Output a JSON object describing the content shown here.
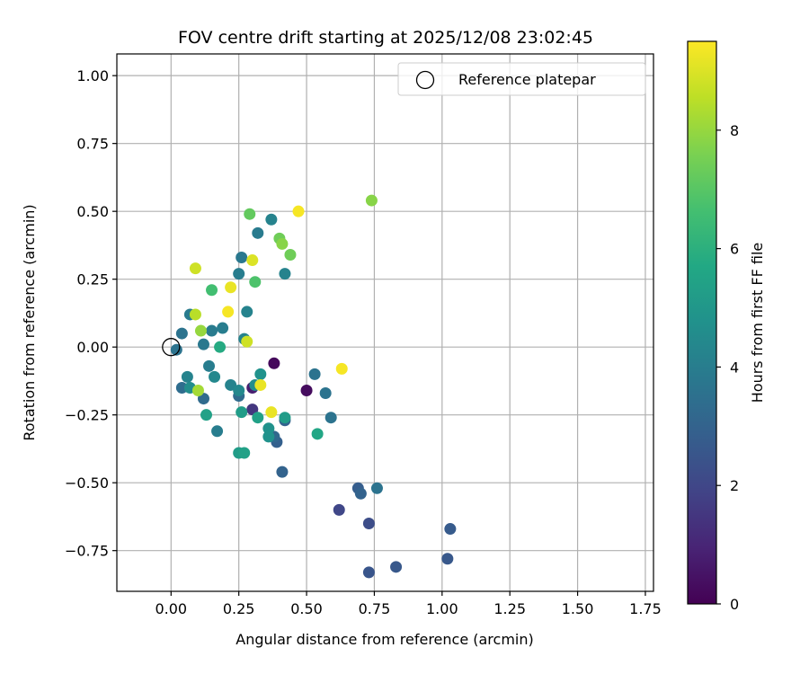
{
  "chart_data": {
    "type": "scatter",
    "title": "FOV centre drift starting at 2025/12/08 23:02:45",
    "xlabel": "Angular distance from reference (arcmin)",
    "ylabel": "Rotation from reference (arcmin)",
    "xlim": [
      -0.2,
      1.78
    ],
    "ylim": [
      -0.9,
      1.08
    ],
    "xticks": [
      0.0,
      0.25,
      0.5,
      0.75,
      1.0,
      1.25,
      1.5,
      1.75
    ],
    "xtick_labels": [
      "0.00",
      "0.25",
      "0.50",
      "0.75",
      "1.00",
      "1.25",
      "1.50",
      "1.75"
    ],
    "yticks": [
      -0.75,
      -0.5,
      -0.25,
      0.0,
      0.25,
      0.5,
      0.75,
      1.0
    ],
    "ytick_labels": [
      "−0.75",
      "−0.50",
      "−0.25",
      "0.00",
      "0.25",
      "0.50",
      "0.75",
      "1.00"
    ],
    "grid": true,
    "legend": {
      "placement": "top-right",
      "entries": [
        "Reference platepar"
      ]
    },
    "reference_point": {
      "x": 0.0,
      "y": 0.0
    },
    "colorbar": {
      "label": "Hours from first FF file",
      "range": [
        0,
        9.5
      ],
      "ticks": [
        0,
        2,
        4,
        6,
        8
      ],
      "tick_labels": [
        "0",
        "2",
        "4",
        "6",
        "8"
      ],
      "colormap": "viridis"
    },
    "points": [
      {
        "x": 0.38,
        "y": -0.06,
        "c": 0.2
      },
      {
        "x": 0.5,
        "y": -0.16,
        "c": 0.3
      },
      {
        "x": 0.3,
        "y": -0.15,
        "c": 0.8
      },
      {
        "x": 0.3,
        "y": -0.23,
        "c": 1.5
      },
      {
        "x": 0.62,
        "y": -0.6,
        "c": 2.0
      },
      {
        "x": 0.73,
        "y": -0.65,
        "c": 2.2
      },
      {
        "x": 0.73,
        "y": -0.83,
        "c": 2.5
      },
      {
        "x": 0.83,
        "y": -0.81,
        "c": 2.6
      },
      {
        "x": 1.02,
        "y": -0.78,
        "c": 2.6
      },
      {
        "x": 1.03,
        "y": -0.67,
        "c": 2.7
      },
      {
        "x": 0.69,
        "y": -0.52,
        "c": 2.8
      },
      {
        "x": 0.7,
        "y": -0.54,
        "c": 3.0
      },
      {
        "x": 0.39,
        "y": -0.35,
        "c": 2.9
      },
      {
        "x": 0.41,
        "y": -0.46,
        "c": 3.0
      },
      {
        "x": 0.42,
        "y": -0.27,
        "c": 3.0
      },
      {
        "x": 0.38,
        "y": -0.33,
        "c": 3.2
      },
      {
        "x": 0.25,
        "y": -0.18,
        "c": 3.3
      },
      {
        "x": 0.12,
        "y": -0.19,
        "c": 3.3
      },
      {
        "x": 0.59,
        "y": -0.26,
        "c": 3.6
      },
      {
        "x": 0.57,
        "y": -0.17,
        "c": 3.6
      },
      {
        "x": 0.53,
        "y": -0.1,
        "c": 3.6
      },
      {
        "x": 0.76,
        "y": -0.52,
        "c": 3.6
      },
      {
        "x": 0.04,
        "y": -0.15,
        "c": 3.4
      },
      {
        "x": 0.02,
        "y": -0.01,
        "c": 3.6
      },
      {
        "x": 0.04,
        "y": 0.05,
        "c": 3.6
      },
      {
        "x": 0.07,
        "y": 0.12,
        "c": 3.9
      },
      {
        "x": 0.12,
        "y": 0.01,
        "c": 3.8
      },
      {
        "x": 0.15,
        "y": 0.06,
        "c": 3.9
      },
      {
        "x": 0.19,
        "y": 0.07,
        "c": 4.0
      },
      {
        "x": 0.14,
        "y": -0.07,
        "c": 4.0
      },
      {
        "x": 0.17,
        "y": -0.31,
        "c": 4.0
      },
      {
        "x": 0.06,
        "y": -0.11,
        "c": 4.2
      },
      {
        "x": 0.25,
        "y": 0.27,
        "c": 4.0
      },
      {
        "x": 0.26,
        "y": 0.33,
        "c": 3.8
      },
      {
        "x": 0.32,
        "y": 0.42,
        "c": 3.9
      },
      {
        "x": 0.37,
        "y": 0.47,
        "c": 4.2
      },
      {
        "x": 0.42,
        "y": 0.27,
        "c": 4.2
      },
      {
        "x": 0.28,
        "y": 0.13,
        "c": 4.2
      },
      {
        "x": 0.27,
        "y": 0.03,
        "c": 4.2
      },
      {
        "x": 0.22,
        "y": -0.14,
        "c": 4.2
      },
      {
        "x": 0.25,
        "y": -0.16,
        "c": 4.4
      },
      {
        "x": 0.16,
        "y": -0.11,
        "c": 4.4
      },
      {
        "x": 0.07,
        "y": -0.15,
        "c": 4.6
      },
      {
        "x": 0.31,
        "y": -0.14,
        "c": 4.6
      },
      {
        "x": 0.33,
        "y": -0.1,
        "c": 4.8
      },
      {
        "x": 0.36,
        "y": -0.3,
        "c": 4.8
      },
      {
        "x": 0.36,
        "y": -0.33,
        "c": 4.8
      },
      {
        "x": 0.26,
        "y": -0.24,
        "c": 5.2
      },
      {
        "x": 0.13,
        "y": -0.25,
        "c": 5.4
      },
      {
        "x": 0.32,
        "y": -0.26,
        "c": 5.4
      },
      {
        "x": 0.42,
        "y": -0.26,
        "c": 5.2
      },
      {
        "x": 0.25,
        "y": -0.39,
        "c": 5.2
      },
      {
        "x": 0.27,
        "y": -0.39,
        "c": 5.4
      },
      {
        "x": 0.54,
        "y": -0.32,
        "c": 5.6
      },
      {
        "x": 0.18,
        "y": 0.0,
        "c": 5.8
      },
      {
        "x": 0.15,
        "y": 0.21,
        "c": 6.6
      },
      {
        "x": 0.31,
        "y": 0.24,
        "c": 6.8
      },
      {
        "x": 0.29,
        "y": 0.49,
        "c": 7.2
      },
      {
        "x": 0.4,
        "y": 0.4,
        "c": 7.4
      },
      {
        "x": 0.41,
        "y": 0.38,
        "c": 7.8
      },
      {
        "x": 0.44,
        "y": 0.34,
        "c": 7.4
      },
      {
        "x": 0.74,
        "y": 0.54,
        "c": 7.8
      },
      {
        "x": 0.11,
        "y": 0.06,
        "c": 8.0
      },
      {
        "x": 0.1,
        "y": -0.16,
        "c": 8.2
      },
      {
        "x": 0.09,
        "y": 0.12,
        "c": 8.5
      },
      {
        "x": 0.28,
        "y": 0.02,
        "c": 8.8
      },
      {
        "x": 0.09,
        "y": 0.29,
        "c": 8.8
      },
      {
        "x": 0.3,
        "y": 0.32,
        "c": 9.0
      },
      {
        "x": 0.22,
        "y": 0.22,
        "c": 9.2
      },
      {
        "x": 0.33,
        "y": -0.14,
        "c": 9.2
      },
      {
        "x": 0.37,
        "y": -0.24,
        "c": 9.2
      },
      {
        "x": 0.21,
        "y": 0.13,
        "c": 9.4
      },
      {
        "x": 0.47,
        "y": 0.5,
        "c": 9.4
      },
      {
        "x": 0.63,
        "y": -0.08,
        "c": 9.4
      }
    ]
  }
}
